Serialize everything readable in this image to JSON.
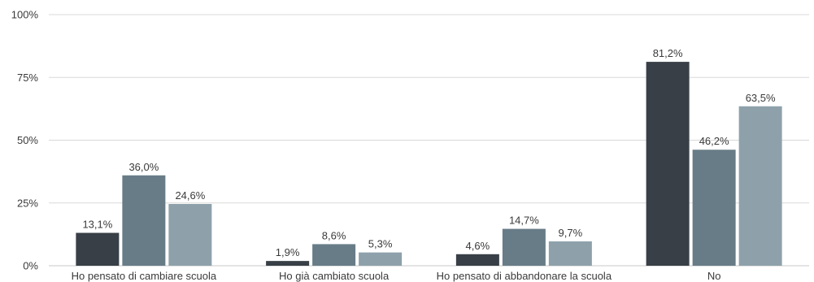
{
  "chart_data": {
    "type": "bar",
    "title": "",
    "xlabel": "",
    "ylabel": "",
    "ylim": [
      0,
      100
    ],
    "yticks": [
      0,
      25,
      50,
      75,
      100
    ],
    "ytick_labels": [
      "0%",
      "25%",
      "50%",
      "75%",
      "100%"
    ],
    "grid": true,
    "legend": "none",
    "categories": [
      "Ho pensato di cambiare scuola",
      "Ho già cambiato scuola",
      "Ho pensato di abbandonare la scuola",
      "No"
    ],
    "series": [
      {
        "color": "#383f46",
        "values": [
          13.1,
          1.9,
          4.6,
          81.2
        ],
        "labels": [
          "13,1%",
          "1,9%",
          "4,6%",
          "81,2%"
        ]
      },
      {
        "color": "#687c87",
        "values": [
          36.0,
          8.6,
          14.7,
          46.2
        ],
        "labels": [
          "36,0%",
          "8,6%",
          "14,7%",
          "46,2%"
        ]
      },
      {
        "color": "#8ea1ab",
        "values": [
          24.6,
          5.3,
          9.7,
          63.5
        ],
        "labels": [
          "24,6%",
          "5,3%",
          "9,7%",
          "63,5%"
        ]
      }
    ],
    "gridline_color": "#d9d9d9",
    "text_color": "#3a3a3a"
  }
}
